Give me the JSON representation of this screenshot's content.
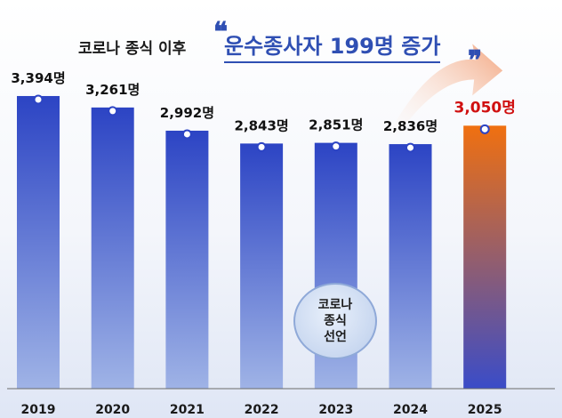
{
  "header": {
    "subtitle": "코로나 종식 이후",
    "headline": "운수종사자 199명 증가",
    "open_quote": "❝",
    "close_quote": "❞"
  },
  "badge": {
    "line1": "코로나",
    "line2": "종식",
    "line3": "선언"
  },
  "colors": {
    "bar_top": "#2c44c4",
    "bar_bottom": "#9fb3e6",
    "highlight_top": "#f07010",
    "highlight_bottom": "#3a4cc8",
    "highlight_label": "#d01010",
    "arrow": "#f2a27a"
  },
  "chart_data": {
    "type": "bar",
    "categories": [
      "2019",
      "2020",
      "2021",
      "2022",
      "2023",
      "2024",
      "2025"
    ],
    "values": [
      3394,
      3261,
      2992,
      2843,
      2851,
      2836,
      3050
    ],
    "value_labels": [
      "3,394명",
      "3,261명",
      "2,992명",
      "2,843명",
      "2,851명",
      "2,836명",
      "3,050명"
    ],
    "highlight_index": 6,
    "ylim": [
      0,
      3600
    ],
    "title": "",
    "xlabel": "",
    "ylabel": "",
    "grid": false
  }
}
